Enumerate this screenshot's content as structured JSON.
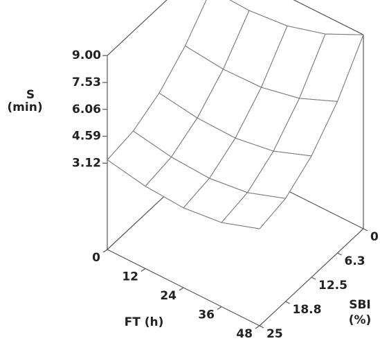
{
  "chart_data": {
    "type": "surface",
    "xlabel": "FT (h)",
    "ylabel": [
      "SBI",
      "(%)"
    ],
    "zlabel": [
      "S",
      "(min)"
    ],
    "x": [
      0,
      12,
      24,
      36,
      48
    ],
    "y": [
      0,
      6.25,
      12.5,
      18.75,
      25
    ],
    "z": [
      [
        7.3,
        5.55,
        4.3,
        3.55,
        3.3
      ],
      [
        7.2,
        5.32,
        3.98,
        3.17,
        2.9
      ],
      [
        7.4,
        5.37,
        3.92,
        3.05,
        2.76
      ],
      [
        8.0,
        5.81,
        4.25,
        3.31,
        3.0
      ],
      [
        9.0,
        6.68,
        5.03,
        4.03,
        3.7
      ]
    ],
    "xlim": [
      0,
      48
    ],
    "ylim": [
      0,
      25
    ],
    "zlim": [
      -1.6,
      9
    ],
    "xticks": [
      0,
      12,
      24,
      36,
      48
    ],
    "yticks": [
      0,
      {
        "value": 6.25,
        "label": "6.3"
      },
      12.5,
      {
        "value": 18.75,
        "label": "18.8"
      },
      25
    ],
    "zticks": [
      3.12,
      4.59,
      6.06,
      7.53,
      {
        "value": 9,
        "label": "9.00"
      }
    ],
    "color": "#777777"
  }
}
